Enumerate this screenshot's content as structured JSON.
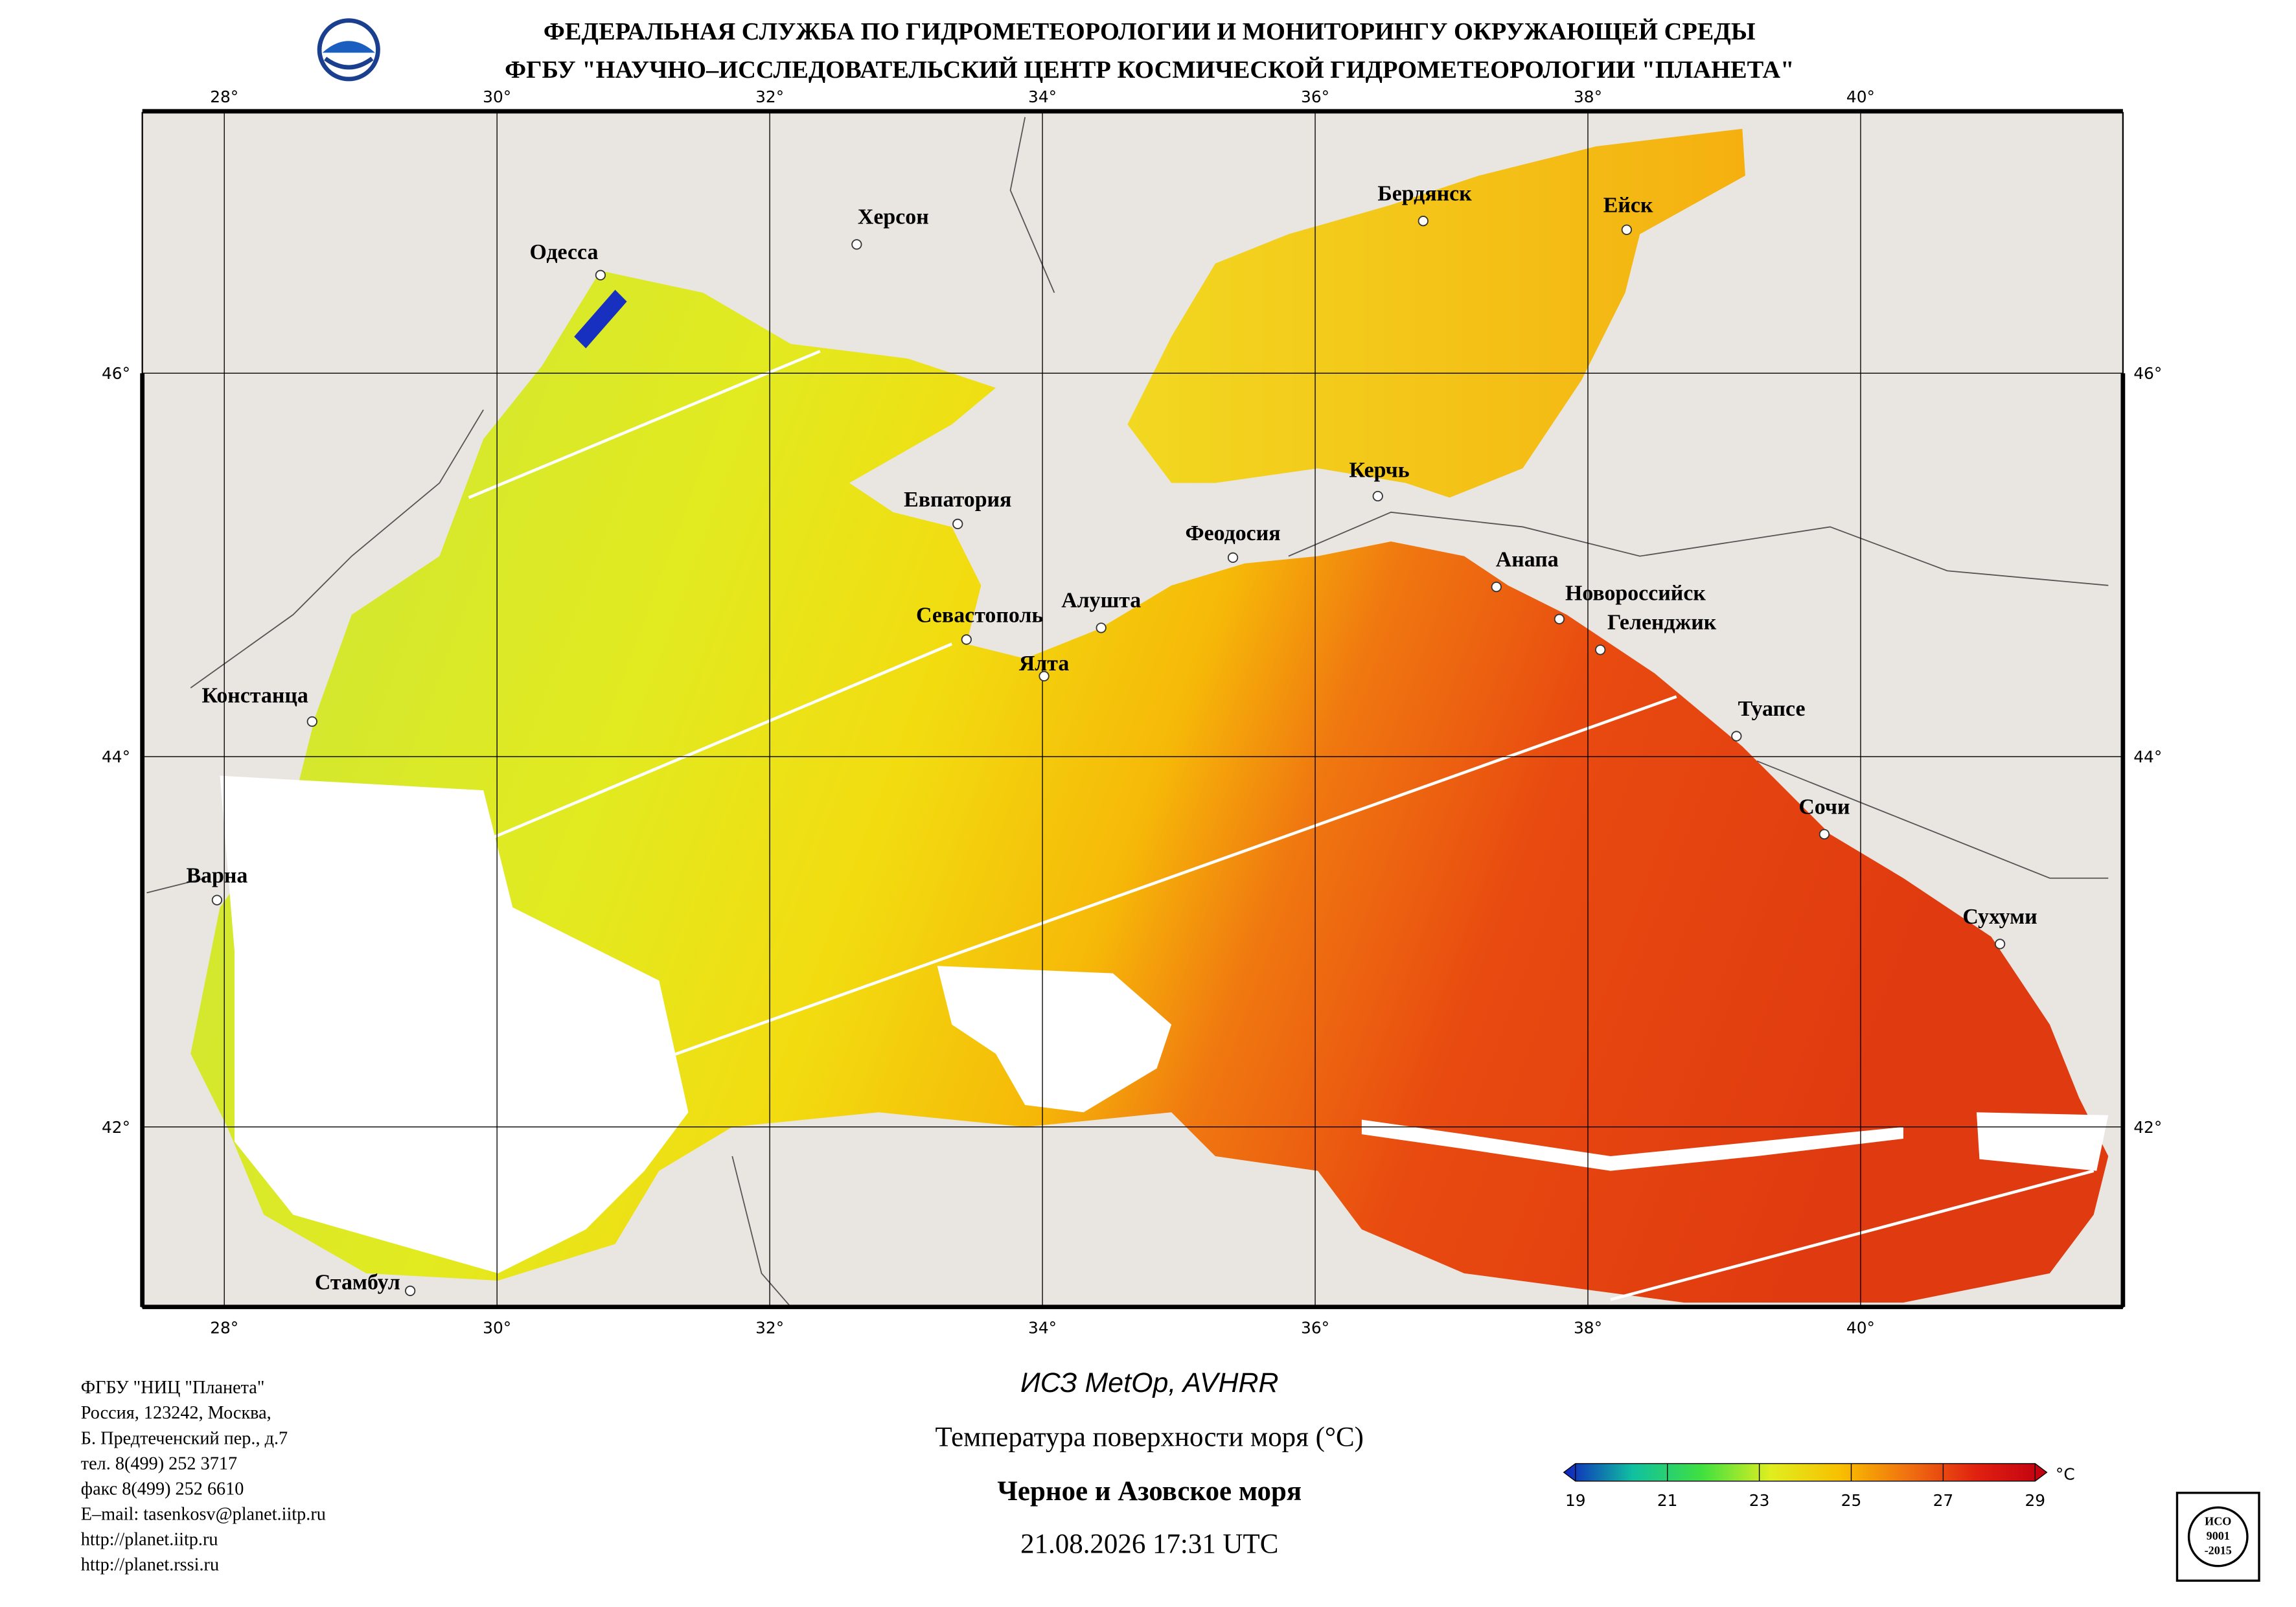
{
  "header": {
    "line1": "ФЕДЕРАЛЬНАЯ СЛУЖБА ПО ГИДРОМЕТЕОРОЛОГИИ И МОНИТОРИНГУ ОКРУЖАЮЩЕЙ СРЕДЫ",
    "line2": "ФГБУ \"НАУЧНО–ИССЛЕДОВАТЕЛЬСКИЙ ЦЕНТР КОСМИЧЕСКОЙ ГИДРОМЕТЕОРОЛОГИИ \"ПЛАНЕТА\""
  },
  "map": {
    "lon_labels": [
      "28°",
      "30°",
      "32°",
      "34°",
      "36°",
      "38°",
      "40°"
    ],
    "lat_labels": [
      "46°",
      "44°",
      "42°"
    ],
    "cities": [
      "Херсон",
      "Одесса",
      "Бердянск",
      "Ейск",
      "Евпатория",
      "Керчь",
      "Феодосия",
      "Анапа",
      "Новороссийск",
      "Геленджик",
      "Севастополь",
      "Алушта",
      "Ялта",
      "Туапсе",
      "Сочи",
      "Сухуми",
      "Констанца",
      "Варна",
      "Стамбул"
    ]
  },
  "footer": {
    "organization": [
      "ФГБУ \"НИЦ \"Планета\"",
      "Россия, 123242, Москва,",
      "Б. Предтеченский пер., д.7",
      "тел. 8(499) 252 3717",
      "факс 8(499) 252 6610",
      "E–mail: tasenkosv@planet.iitp.ru",
      "http://planet.iitp.ru",
      "http://planet.rssi.ru"
    ],
    "satellite": "ИСЗ MetOp, AVHRR",
    "parameter": "Температура поверхности моря (°C)",
    "region": "Черное и Азовское моря",
    "datetime": "21.08.2026 17:31 UTC"
  },
  "colorbar": {
    "ticks": [
      19,
      21,
      23,
      25,
      27,
      29
    ],
    "unit": "°C",
    "colors": [
      "#1020c0",
      "#10c0a0",
      "#40e040",
      "#e0ee20",
      "#f8c000",
      "#f07010",
      "#e02010",
      "#c00010"
    ]
  },
  "certificate": {
    "lines": [
      "ИСО",
      "9001",
      "-2015"
    ]
  }
}
